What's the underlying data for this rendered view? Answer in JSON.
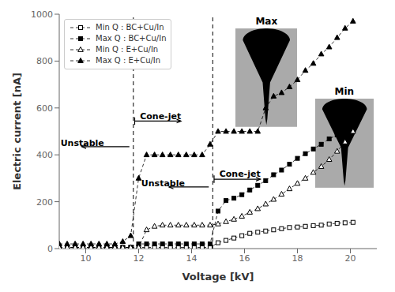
{
  "chart_data": {
    "type": "line",
    "xlabel": "Voltage [kV]",
    "ylabel": "Electric current [nA]",
    "xlim": [
      9,
      21
    ],
    "ylim": [
      0,
      1000
    ],
    "xticks": [
      10,
      12,
      14,
      16,
      18,
      20
    ],
    "yticks": [
      0,
      200,
      400,
      600,
      800,
      1000
    ],
    "grid": false,
    "legend": "upper left",
    "x": [
      9.0,
      9.3,
      9.6,
      9.9,
      10.2,
      10.5,
      10.8,
      11.1,
      11.4,
      11.7,
      12.0,
      12.3,
      12.6,
      12.9,
      13.2,
      13.5,
      13.8,
      14.1,
      14.4,
      14.7,
      15.0,
      15.3,
      15.6,
      15.9,
      16.2,
      16.5,
      16.8,
      17.1,
      17.4,
      17.7,
      18.0,
      18.3,
      18.6,
      18.9,
      19.2,
      19.5,
      19.8,
      20.1
    ],
    "series": [
      {
        "name": "Min Q : BC+Cu/In",
        "color": "black",
        "marker": "square-open",
        "line_style": "dashed",
        "values": [
          5,
          5,
          5,
          5,
          5,
          5,
          5,
          5,
          5,
          5,
          5,
          5,
          5,
          5,
          5,
          5,
          5,
          5,
          5,
          5,
          25,
          35,
          45,
          55,
          65,
          70,
          75,
          80,
          85,
          90,
          92,
          95,
          98,
          100,
          105,
          108,
          110,
          112
        ]
      },
      {
        "name": "Max Q : BC+Cu/In",
        "color": "black",
        "marker": "square",
        "line_style": "dashed",
        "values": [
          5,
          5,
          5,
          5,
          5,
          5,
          5,
          5,
          5,
          5,
          20,
          20,
          20,
          20,
          20,
          20,
          20,
          20,
          20,
          20,
          160,
          205,
          215,
          230,
          250,
          270,
          290,
          315,
          335,
          360,
          385,
          405,
          425,
          445,
          468,
          485,
          510,
          535
        ]
      },
      {
        "name": "Min Q : E+Cu/In",
        "color": "black",
        "marker": "triangle-open",
        "line_style": "dashed",
        "values": [
          5,
          5,
          5,
          5,
          5,
          5,
          5,
          5,
          5,
          5,
          5,
          80,
          95,
          100,
          100,
          100,
          100,
          100,
          100,
          100,
          105,
          115,
          125,
          138,
          155,
          170,
          190,
          210,
          232,
          255,
          278,
          300,
          325,
          350,
          380,
          415,
          455,
          500
        ]
      },
      {
        "name": "Max Q : E+Cu/In",
        "color": "black",
        "marker": "triangle",
        "line_style": "dashed",
        "values": [
          20,
          20,
          20,
          20,
          20,
          20,
          20,
          20,
          30,
          55,
          300,
          400,
          400,
          400,
          400,
          400,
          400,
          400,
          400,
          445,
          500,
          500,
          500,
          500,
          500,
          500,
          600,
          650,
          665,
          690,
          720,
          760,
          790,
          830,
          860,
          900,
          940,
          970
        ]
      }
    ],
    "vlines": [
      11.8,
      14.8
    ],
    "annotations": [
      {
        "text": "Unstable",
        "x": 9.05,
        "y": 430,
        "arrow_from": [
          11.65,
          435
        ],
        "arrow_to": [
          9.85,
          435
        ]
      },
      {
        "text": "Cone-jet",
        "x": 12.05,
        "y": 545,
        "bracket_x": 11.85,
        "bracket_y": [
          528,
          560
        ],
        "arrow_from": [
          11.85,
          544
        ],
        "arrow_to": [
          13.6,
          544
        ]
      },
      {
        "text": "Unstable",
        "x": 12.1,
        "y": 258,
        "arrow_from": [
          14.65,
          263
        ],
        "arrow_to": [
          13.15,
          263
        ]
      },
      {
        "text": "Cone-jet",
        "x": 15.05,
        "y": 298,
        "bracket_x": 14.85,
        "bracket_y": [
          280,
          312
        ],
        "arrow_from": [
          14.85,
          296
        ],
        "arrow_to": [
          16.6,
          296
        ]
      }
    ],
    "inset_labels": [
      "Max",
      "Min"
    ]
  }
}
